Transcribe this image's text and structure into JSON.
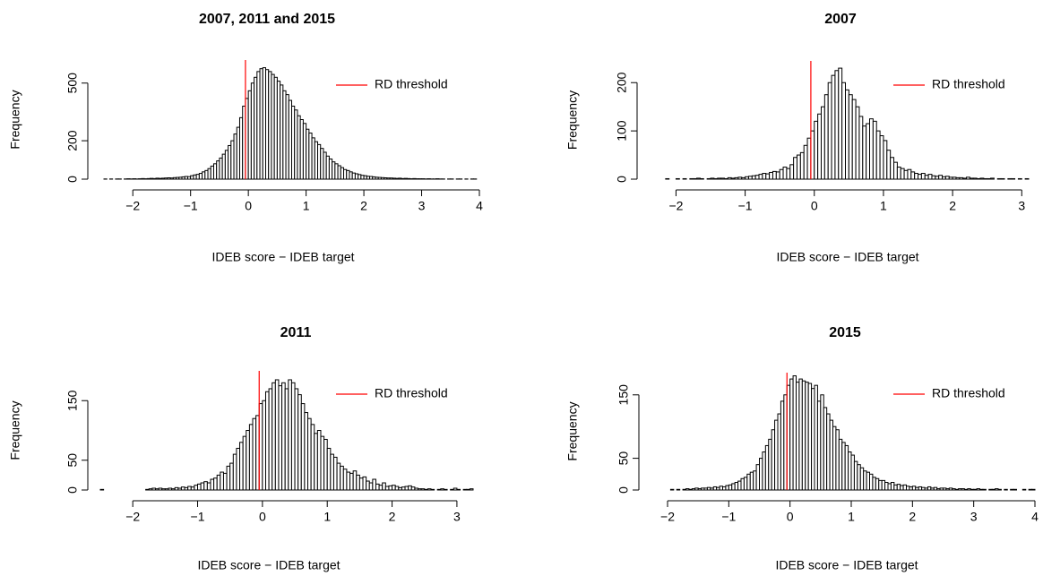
{
  "chart_data": [
    {
      "type": "histogram",
      "title": "2007, 2011 and 2015",
      "xlabel": "IDEB score − IDEB target",
      "ylabel": "Frequency",
      "bins": [
        -2.5,
        -2.45,
        -2.4,
        -2.35,
        -2.3,
        -2.25,
        -2.2,
        -2.15,
        -2.1,
        -2.05,
        -2,
        -1.95,
        -1.9,
        -1.85,
        -1.8,
        -1.75,
        -1.7,
        -1.65,
        -1.6,
        -1.55,
        -1.5,
        -1.45,
        -1.4,
        -1.35,
        -1.3,
        -1.25,
        -1.2,
        -1.15,
        -1.1,
        -1.05,
        -1,
        -0.95,
        -0.9,
        -0.85,
        -0.8,
        -0.75,
        -0.7,
        -0.65,
        -0.6,
        -0.55,
        -0.5,
        -0.45,
        -0.4,
        -0.35,
        -0.3,
        -0.25,
        -0.2,
        -0.15,
        -0.1,
        -0.05,
        0,
        0.05,
        0.1,
        0.15,
        0.2,
        0.25,
        0.3,
        0.35,
        0.4,
        0.45,
        0.5,
        0.55,
        0.6,
        0.65,
        0.7,
        0.75,
        0.8,
        0.85,
        0.9,
        0.95,
        1,
        1.05,
        1.1,
        1.15,
        1.2,
        1.25,
        1.3,
        1.35,
        1.4,
        1.45,
        1.5,
        1.55,
        1.6,
        1.65,
        1.7,
        1.75,
        1.8,
        1.85,
        1.9,
        1.95,
        2,
        2.05,
        2.1,
        2.15,
        2.2,
        2.25,
        2.3,
        2.35,
        2.4,
        2.45,
        2.5,
        2.55,
        2.6,
        2.65,
        2.7,
        2.75,
        2.8,
        2.85,
        2.9,
        2.95,
        3,
        3.05,
        3.1,
        3.15,
        3.2,
        3.25,
        3.3,
        3.35,
        3.4,
        3.45,
        3.5,
        3.55,
        3.6,
        3.65,
        3.7,
        3.75,
        3.8,
        3.85,
        3.9,
        3.95
      ],
      "counts": [
        1,
        0,
        1,
        0,
        1,
        1,
        0,
        1,
        2,
        1,
        2,
        1,
        2,
        3,
        2,
        3,
        4,
        3,
        5,
        4,
        5,
        6,
        7,
        6,
        8,
        9,
        10,
        12,
        14,
        13,
        18,
        22,
        25,
        30,
        38,
        45,
        55,
        68,
        80,
        95,
        110,
        130,
        150,
        175,
        200,
        235,
        270,
        320,
        380,
        420,
        460,
        500,
        530,
        560,
        575,
        580,
        570,
        560,
        545,
        530,
        510,
        490,
        460,
        440,
        410,
        380,
        360,
        330,
        310,
        290,
        260,
        240,
        215,
        195,
        180,
        160,
        140,
        120,
        105,
        90,
        80,
        70,
        60,
        50,
        45,
        38,
        32,
        28,
        24,
        20,
        18,
        15,
        14,
        12,
        10,
        9,
        8,
        7,
        6,
        6,
        5,
        4,
        5,
        3,
        4,
        3,
        2,
        3,
        2,
        2,
        2,
        1,
        2,
        1,
        1,
        2,
        1,
        1,
        0,
        1,
        1,
        0,
        1,
        1,
        0,
        1,
        0,
        1,
        1
      ],
      "xlim": [
        -2.5,
        4
      ],
      "ylim": [
        0,
        620
      ],
      "xticks": [
        {
          "value": -2,
          "label": "−2"
        },
        {
          "value": -1,
          "label": "−1"
        },
        0,
        1,
        2,
        3,
        4
      ],
      "yticks": [
        0,
        200,
        500
      ],
      "bar_color": "#ffffff",
      "edge_color": "#000000",
      "threshold": {
        "value": -0.05,
        "label": "RD threshold",
        "color": "#ff0000"
      },
      "legend": "topright"
    },
    {
      "type": "histogram",
      "title": "2007",
      "xlabel": "IDEB score − IDEB target",
      "ylabel": "Frequency",
      "bins": [
        -2.2,
        -2.15,
        -2.1,
        -2.05,
        -2,
        -1.95,
        -1.9,
        -1.85,
        -1.8,
        -1.75,
        -1.7,
        -1.65,
        -1.6,
        -1.55,
        -1.5,
        -1.45,
        -1.4,
        -1.35,
        -1.3,
        -1.25,
        -1.2,
        -1.15,
        -1.1,
        -1.05,
        -1,
        -0.95,
        -0.9,
        -0.85,
        -0.8,
        -0.75,
        -0.7,
        -0.65,
        -0.6,
        -0.55,
        -0.5,
        -0.45,
        -0.4,
        -0.35,
        -0.3,
        -0.25,
        -0.2,
        -0.15,
        -0.1,
        -0.05,
        0,
        0.05,
        0.1,
        0.15,
        0.2,
        0.25,
        0.3,
        0.35,
        0.4,
        0.45,
        0.5,
        0.55,
        0.6,
        0.65,
        0.7,
        0.75,
        0.8,
        0.85,
        0.9,
        0.95,
        1,
        1.05,
        1.1,
        1.15,
        1.2,
        1.25,
        1.3,
        1.35,
        1.4,
        1.45,
        1.5,
        1.55,
        1.6,
        1.65,
        1.7,
        1.75,
        1.8,
        1.85,
        1.9,
        1.95,
        2,
        2.05,
        2.1,
        2.15,
        2.2,
        2.25,
        2.3,
        2.35,
        2.4,
        2.45,
        2.5,
        2.55,
        2.6,
        2.65,
        2.7,
        2.75,
        2.8,
        2.85,
        2.9,
        2.95,
        3,
        3.05,
        3.1
      ],
      "counts": [
        0,
        1,
        0,
        0,
        1,
        0,
        1,
        0,
        1,
        1,
        2,
        1,
        0,
        1,
        2,
        1,
        2,
        2,
        1,
        3,
        2,
        3,
        4,
        3,
        5,
        6,
        7,
        8,
        10,
        12,
        11,
        14,
        16,
        15,
        20,
        25,
        22,
        30,
        45,
        50,
        55,
        70,
        85,
        100,
        120,
        135,
        150,
        175,
        200,
        215,
        225,
        230,
        200,
        185,
        175,
        165,
        150,
        130,
        110,
        115,
        125,
        120,
        100,
        90,
        80,
        60,
        45,
        35,
        25,
        22,
        18,
        20,
        15,
        12,
        10,
        12,
        8,
        10,
        7,
        6,
        8,
        5,
        6,
        4,
        4,
        3,
        3,
        2,
        4,
        2,
        2,
        1,
        2,
        1,
        1,
        2,
        0,
        1,
        1,
        0,
        1,
        1,
        0,
        1,
        0,
        1
      ],
      "xlim": [
        -2.2,
        3.1
      ],
      "ylim": [
        0,
        245
      ],
      "xticks": [
        {
          "value": -2,
          "label": "−2"
        },
        {
          "value": -1,
          "label": "−1"
        },
        0,
        1,
        2,
        3
      ],
      "yticks": [
        0,
        100,
        200
      ],
      "bar_color": "#ffffff",
      "edge_color": "#000000",
      "threshold": {
        "value": -0.05,
        "label": "RD threshold",
        "color": "#ff0000"
      },
      "legend": "topright"
    },
    {
      "type": "histogram",
      "title": "2011",
      "xlabel": "IDEB score − IDEB target",
      "ylabel": "Frequency",
      "bins": [
        -2.5,
        -2.45,
        -2.4,
        -2.35,
        -2.3,
        -2.25,
        -2.2,
        -2.15,
        -2.1,
        -2.05,
        -2,
        -1.95,
        -1.9,
        -1.85,
        -1.8,
        -1.75,
        -1.7,
        -1.65,
        -1.6,
        -1.55,
        -1.5,
        -1.45,
        -1.4,
        -1.35,
        -1.3,
        -1.25,
        -1.2,
        -1.15,
        -1.1,
        -1.05,
        -1,
        -0.95,
        -0.9,
        -0.85,
        -0.8,
        -0.75,
        -0.7,
        -0.65,
        -0.6,
        -0.55,
        -0.5,
        -0.45,
        -0.4,
        -0.35,
        -0.3,
        -0.25,
        -0.2,
        -0.15,
        -0.1,
        -0.05,
        0,
        0.05,
        0.1,
        0.15,
        0.2,
        0.25,
        0.3,
        0.35,
        0.4,
        0.45,
        0.5,
        0.55,
        0.6,
        0.65,
        0.7,
        0.75,
        0.8,
        0.85,
        0.9,
        0.95,
        1,
        1.05,
        1.1,
        1.15,
        1.2,
        1.25,
        1.3,
        1.35,
        1.4,
        1.45,
        1.5,
        1.55,
        1.6,
        1.65,
        1.7,
        1.75,
        1.8,
        1.85,
        1.9,
        1.95,
        2,
        2.05,
        2.1,
        2.15,
        2.2,
        2.25,
        2.3,
        2.35,
        2.4,
        2.45,
        2.5,
        2.55,
        2.6,
        2.65,
        2.7,
        2.75,
        2.8,
        2.85,
        2.9,
        2.95,
        3,
        3.05,
        3.1,
        3.15,
        3.2,
        3.25
      ],
      "counts": [
        1,
        0,
        0,
        0,
        0,
        0,
        0,
        0,
        0,
        0,
        0,
        0,
        0,
        0,
        1,
        2,
        3,
        2,
        3,
        2,
        2,
        3,
        2,
        4,
        3,
        5,
        4,
        6,
        5,
        8,
        10,
        12,
        14,
        12,
        18,
        20,
        25,
        30,
        28,
        40,
        45,
        60,
        70,
        80,
        90,
        100,
        110,
        120,
        125,
        145,
        150,
        165,
        170,
        180,
        185,
        175,
        180,
        170,
        185,
        180,
        170,
        160,
        145,
        130,
        120,
        110,
        95,
        100,
        90,
        85,
        70,
        60,
        55,
        45,
        40,
        35,
        30,
        28,
        32,
        25,
        20,
        22,
        15,
        12,
        18,
        10,
        8,
        12,
        6,
        7,
        8,
        6,
        4,
        5,
        6,
        7,
        5,
        3,
        2,
        2,
        1,
        2,
        1,
        0,
        1,
        2,
        1,
        0,
        1,
        3,
        1,
        0,
        1,
        1,
        2
      ],
      "xlim": [
        -2.5,
        3.25
      ],
      "ylim": [
        0,
        200
      ],
      "xticks": [
        {
          "value": -2,
          "label": "−2"
        },
        {
          "value": -1,
          "label": "−1"
        },
        0,
        1,
        2,
        3
      ],
      "yticks": [
        0,
        50,
        150
      ],
      "bar_color": "#ffffff",
      "edge_color": "#000000",
      "threshold": {
        "value": -0.05,
        "label": "RD threshold",
        "color": "#ff0000"
      },
      "legend": "topright"
    },
    {
      "type": "histogram",
      "title": "2015",
      "xlabel": "IDEB score − IDEB target",
      "ylabel": "Frequency",
      "bins": [
        -2,
        -1.95,
        -1.9,
        -1.85,
        -1.8,
        -1.75,
        -1.7,
        -1.65,
        -1.6,
        -1.55,
        -1.5,
        -1.45,
        -1.4,
        -1.35,
        -1.3,
        -1.25,
        -1.2,
        -1.15,
        -1.1,
        -1.05,
        -1,
        -0.95,
        -0.9,
        -0.85,
        -0.8,
        -0.75,
        -0.7,
        -0.65,
        -0.6,
        -0.55,
        -0.5,
        -0.45,
        -0.4,
        -0.35,
        -0.3,
        -0.25,
        -0.2,
        -0.15,
        -0.1,
        -0.05,
        0,
        0.05,
        0.1,
        0.15,
        0.2,
        0.25,
        0.3,
        0.35,
        0.4,
        0.45,
        0.5,
        0.55,
        0.6,
        0.65,
        0.7,
        0.75,
        0.8,
        0.85,
        0.9,
        0.95,
        1,
        1.05,
        1.1,
        1.15,
        1.2,
        1.25,
        1.3,
        1.35,
        1.4,
        1.45,
        1.5,
        1.55,
        1.6,
        1.65,
        1.7,
        1.75,
        1.8,
        1.85,
        1.9,
        1.95,
        2,
        2.05,
        2.1,
        2.15,
        2.2,
        2.25,
        2.3,
        2.35,
        2.4,
        2.45,
        2.5,
        2.55,
        2.6,
        2.65,
        2.7,
        2.75,
        2.8,
        2.85,
        2.9,
        2.95,
        3,
        3.05,
        3.1,
        3.15,
        3.2,
        3.25,
        3.3,
        3.35,
        3.4,
        3.45,
        3.5,
        3.55,
        3.6,
        3.65,
        3.7,
        3.75,
        3.8,
        3.85,
        3.9,
        3.95,
        4
      ],
      "counts": [
        0,
        1,
        0,
        1,
        0,
        1,
        2,
        1,
        2,
        3,
        2,
        3,
        3,
        4,
        3,
        5,
        4,
        6,
        5,
        7,
        8,
        10,
        12,
        14,
        18,
        20,
        25,
        28,
        30,
        40,
        50,
        60,
        70,
        80,
        95,
        110,
        120,
        140,
        150,
        165,
        175,
        180,
        170,
        175,
        172,
        170,
        168,
        160,
        165,
        140,
        150,
        130,
        120,
        110,
        100,
        95,
        80,
        75,
        70,
        60,
        55,
        45,
        40,
        35,
        30,
        28,
        25,
        20,
        18,
        15,
        15,
        12,
        10,
        12,
        8,
        9,
        7,
        8,
        6,
        5,
        6,
        4,
        5,
        4,
        3,
        5,
        3,
        4,
        2,
        3,
        3,
        2,
        3,
        2,
        1,
        2,
        2,
        1,
        2,
        1,
        1,
        2,
        1,
        1,
        0,
        1,
        1,
        2,
        1,
        0,
        1,
        0,
        1,
        1,
        0,
        0,
        1,
        0,
        1,
        1
      ],
      "xlim": [
        -2,
        4
      ],
      "ylim": [
        0,
        185
      ],
      "xticks": [
        {
          "value": -2,
          "label": "−2"
        },
        {
          "value": -1,
          "label": "−1"
        },
        0,
        1,
        2,
        3,
        4
      ],
      "yticks": [
        0,
        50,
        150
      ],
      "bar_color": "#ffffff",
      "edge_color": "#000000",
      "threshold": {
        "value": -0.05,
        "label": "RD threshold",
        "color": "#ff0000"
      },
      "legend": "topright"
    }
  ]
}
